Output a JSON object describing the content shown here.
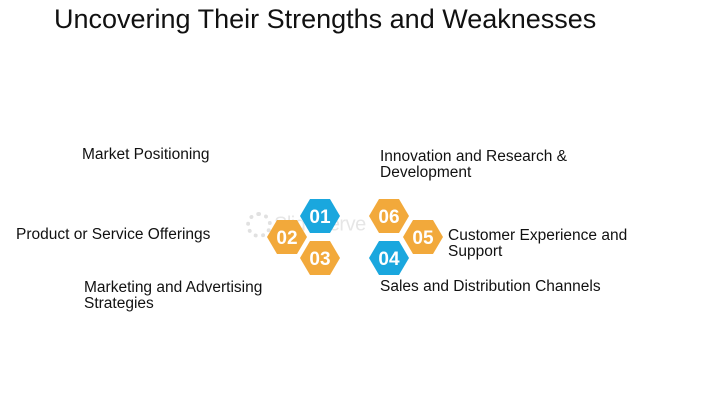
{
  "title": "Uncovering Their Strengths and Weaknesses",
  "labels": {
    "market_positioning": "Market Positioning",
    "product_offerings": "Product or Service Offerings",
    "marketing_strategies_line1": "Marketing and Advertising",
    "marketing_strategies_line2": "Strategies",
    "innovation_line1": "Innovation and Research &",
    "innovation_line2": "Development",
    "customer_line1": "Customer Experience and",
    "customer_line2": "Support",
    "sales_channels": "Sales and Distribution Channels"
  },
  "hexagons": [
    {
      "id": "01",
      "color": "#1aa7de"
    },
    {
      "id": "02",
      "color": "#f2a93b"
    },
    {
      "id": "03",
      "color": "#f2a93b"
    },
    {
      "id": "04",
      "color": "#1aa7de"
    },
    {
      "id": "05",
      "color": "#f2a93b"
    },
    {
      "id": "06",
      "color": "#f2a93b"
    }
  ],
  "watermark": "SlideServe",
  "icons": [
    "gear-icon"
  ]
}
